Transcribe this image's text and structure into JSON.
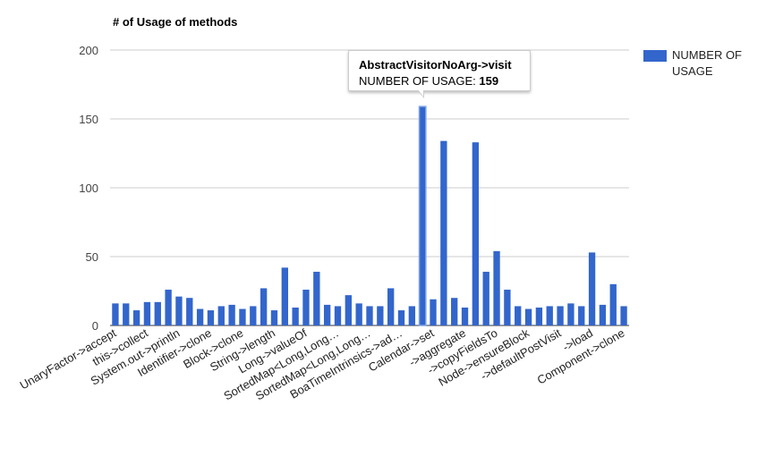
{
  "chart_data": {
    "type": "bar",
    "title": "# of Usage of methods",
    "xlabel": "",
    "ylabel": "",
    "ylim": [
      0,
      200
    ],
    "yticks": [
      0,
      50,
      100,
      150,
      200
    ],
    "grid": true,
    "legend_position": "right",
    "color": "#3366cc",
    "series": [
      {
        "name": "NUMBER OF USAGE"
      }
    ],
    "values": [
      16,
      16,
      11,
      17,
      17,
      26,
      21,
      20,
      12,
      11,
      14,
      15,
      12,
      14,
      27,
      11,
      42,
      13,
      26,
      39,
      15,
      14,
      22,
      16,
      14,
      14,
      27,
      11,
      14,
      159,
      19,
      134,
      20,
      13,
      133,
      39,
      54,
      26,
      14,
      12,
      13,
      14,
      14,
      16,
      14,
      53,
      15,
      30,
      14
    ],
    "x_tick_labels": [
      "UnaryFactor->accept",
      "this->collect",
      "System.out->println",
      "Identifier->clone",
      "Block->clone",
      "String->length",
      "Long->valueOf",
      "SortedMap<Long,Long…",
      "SortedMap<Long,Long…",
      "BoaTimeIntrinsics->ad…",
      "Calendar->set",
      "->aggregate",
      "->copyFieldsTo",
      "Node->ensureBlock",
      "->defaultPostVisit",
      "->load",
      "Component->clone"
    ],
    "tooltip": {
      "category": "AbstractVisitorNoArg->visit",
      "series": "NUMBER OF USAGE",
      "value": 159
    }
  }
}
